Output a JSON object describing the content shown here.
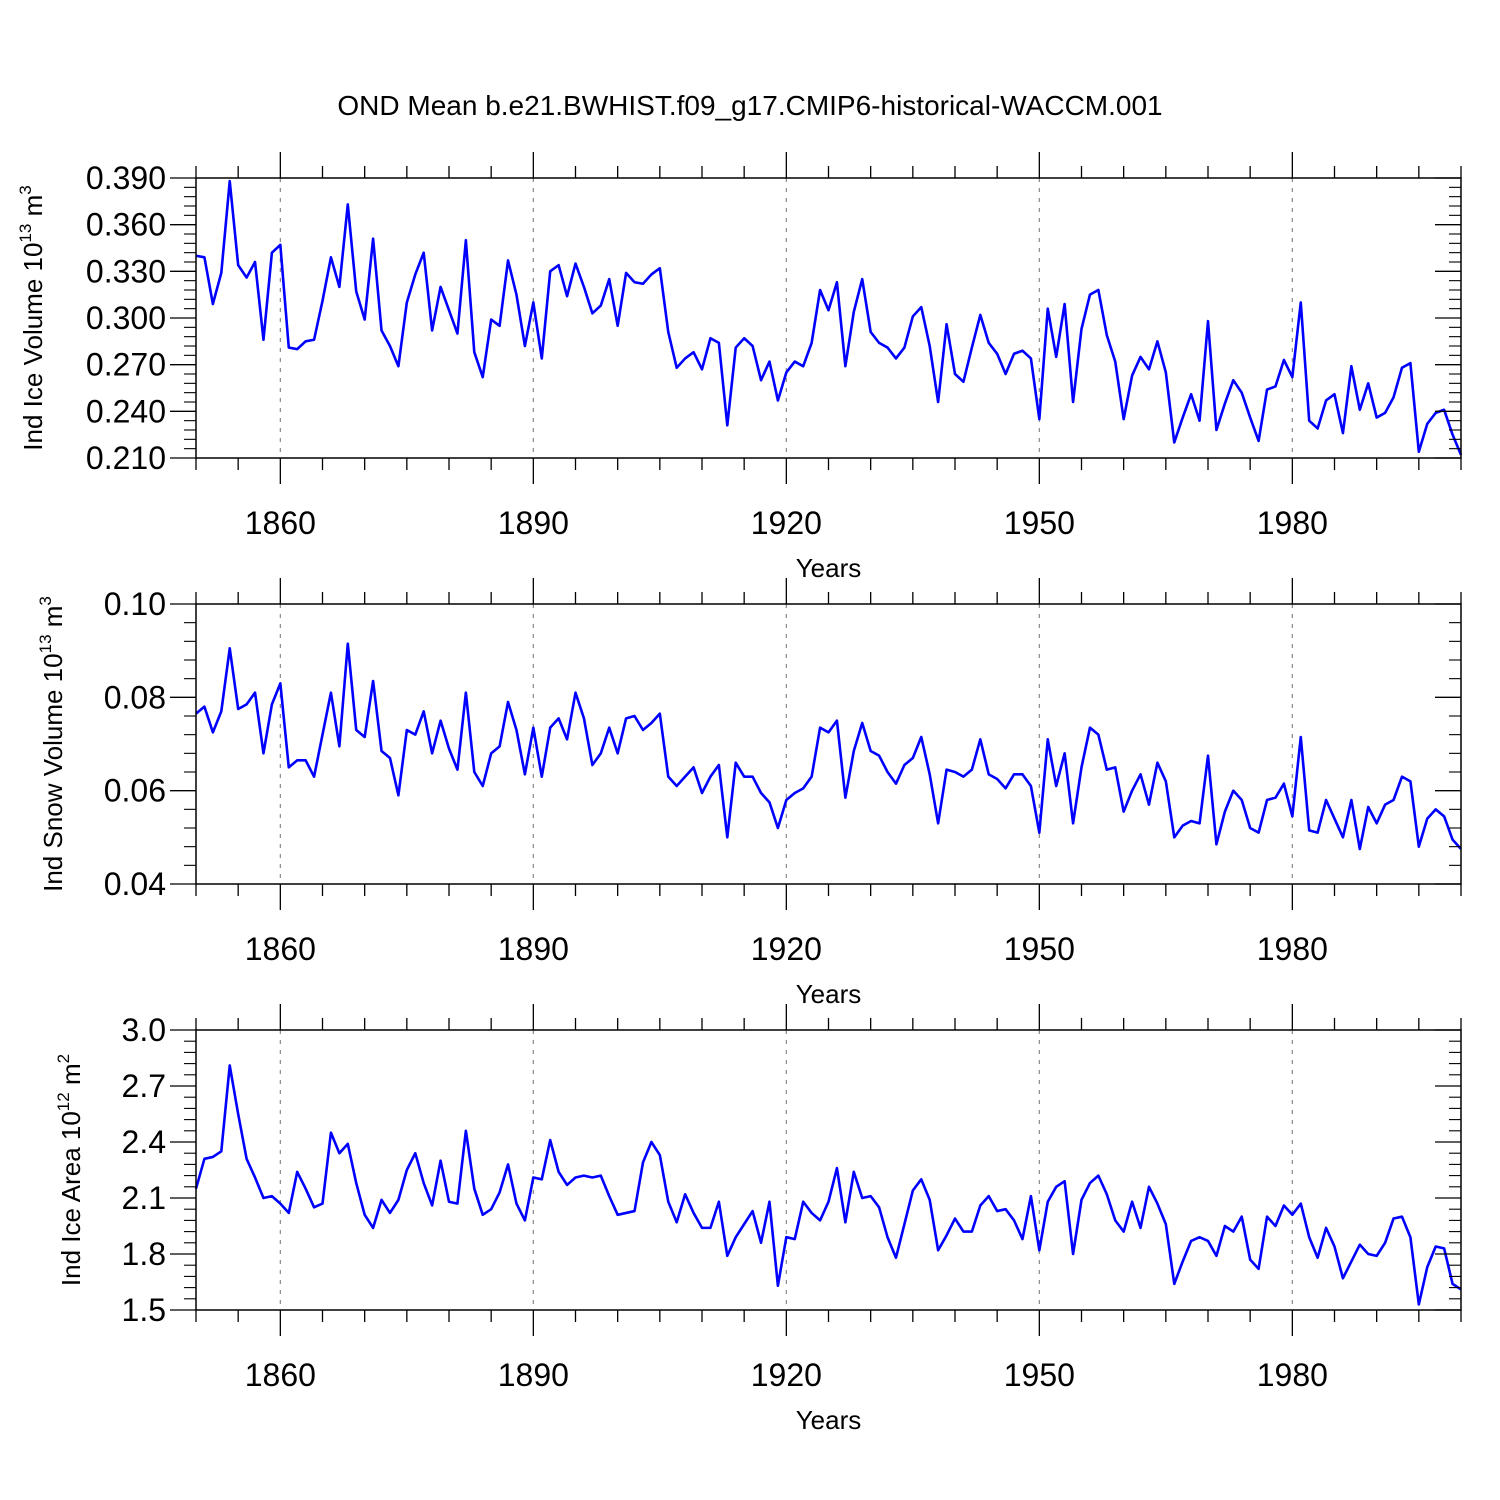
{
  "figure": {
    "title": "OND Mean b.e21.BWHIST.f09_g17.CMIP6-historical-WACCM.001",
    "line_color": "#0000ff",
    "grid_color": "#888888"
  },
  "chart_data": [
    {
      "type": "line",
      "title": "",
      "xlabel": "Years",
      "ylabel_text": "Ind Ice Volume 10",
      "ylabel_exp1": "13",
      "ylabel_unit": " m",
      "ylabel_exp2": "3",
      "xlim": [
        1850,
        2000
      ],
      "ylim": [
        0.21,
        0.39
      ],
      "yticks": [
        0.21,
        0.24,
        0.27,
        0.3,
        0.33,
        0.36,
        0.39
      ],
      "ytick_labels": [
        "0.210",
        "0.240",
        "0.270",
        "0.300",
        "0.330",
        "0.360",
        "0.390"
      ],
      "xticks": [
        1860,
        1890,
        1920,
        1950,
        1980
      ],
      "xtick_labels": [
        "1860",
        "1890",
        "1920",
        "1950",
        "1980"
      ],
      "grid": "vertical dashed at major x ticks",
      "series": [
        {
          "name": "Ind Ice Volume",
          "x_start": 1850,
          "values": [
            0.34,
            0.339,
            0.309,
            0.329,
            0.388,
            0.334,
            0.326,
            0.336,
            0.286,
            0.342,
            0.347,
            0.281,
            0.28,
            0.285,
            0.286,
            0.311,
            0.339,
            0.32,
            0.373,
            0.317,
            0.299,
            0.351,
            0.292,
            0.282,
            0.269,
            0.31,
            0.328,
            0.342,
            0.292,
            0.32,
            0.305,
            0.29,
            0.35,
            0.278,
            0.262,
            0.299,
            0.295,
            0.337,
            0.315,
            0.282,
            0.31,
            0.274,
            0.33,
            0.334,
            0.314,
            0.335,
            0.32,
            0.303,
            0.308,
            0.325,
            0.295,
            0.329,
            0.323,
            0.322,
            0.328,
            0.332,
            0.291,
            0.268,
            0.274,
            0.278,
            0.267,
            0.287,
            0.284,
            0.231,
            0.281,
            0.287,
            0.282,
            0.26,
            0.272,
            0.247,
            0.265,
            0.272,
            0.269,
            0.284,
            0.318,
            0.305,
            0.323,
            0.269,
            0.304,
            0.325,
            0.291,
            0.284,
            0.281,
            0.274,
            0.281,
            0.301,
            0.307,
            0.282,
            0.246,
            0.296,
            0.264,
            0.259,
            0.281,
            0.302,
            0.284,
            0.277,
            0.264,
            0.277,
            0.279,
            0.274,
            0.235,
            0.306,
            0.275,
            0.309,
            0.246,
            0.293,
            0.315,
            0.318,
            0.289,
            0.272,
            0.235,
            0.263,
            0.275,
            0.267,
            0.285,
            0.265,
            0.22,
            0.236,
            0.251,
            0.234,
            0.298,
            0.228,
            0.245,
            0.26,
            0.252,
            0.236,
            0.221,
            0.254,
            0.256,
            0.273,
            0.262,
            0.31,
            0.234,
            0.229,
            0.247,
            0.251,
            0.226,
            0.269,
            0.241,
            0.258,
            0.236,
            0.239,
            0.249,
            0.268,
            0.271,
            0.214,
            0.232,
            0.239,
            0.241,
            0.225,
            0.212
          ]
        }
      ]
    },
    {
      "type": "line",
      "title": "",
      "xlabel": "Years",
      "ylabel_text": "Ind Snow Volume 10",
      "ylabel_exp1": "13",
      "ylabel_unit": " m",
      "ylabel_exp2": "3",
      "xlim": [
        1850,
        2000
      ],
      "ylim": [
        0.04,
        0.1
      ],
      "yticks": [
        0.04,
        0.06,
        0.08,
        0.1
      ],
      "ytick_labels": [
        "0.04",
        "0.06",
        "0.08",
        "0.10"
      ],
      "xticks": [
        1860,
        1890,
        1920,
        1950,
        1980
      ],
      "xtick_labels": [
        "1860",
        "1890",
        "1920",
        "1950",
        "1980"
      ],
      "grid": "vertical dashed at major x ticks",
      "series": [
        {
          "name": "Ind Snow Volume",
          "x_start": 1850,
          "values": [
            0.0765,
            0.078,
            0.0725,
            0.077,
            0.0905,
            0.0775,
            0.0785,
            0.081,
            0.068,
            0.0785,
            0.083,
            0.065,
            0.0665,
            0.0665,
            0.063,
            0.072,
            0.081,
            0.0695,
            0.0915,
            0.073,
            0.0715,
            0.0835,
            0.0685,
            0.067,
            0.059,
            0.073,
            0.072,
            0.077,
            0.068,
            0.075,
            0.069,
            0.0645,
            0.081,
            0.064,
            0.061,
            0.068,
            0.0695,
            0.079,
            0.073,
            0.0635,
            0.0735,
            0.063,
            0.0735,
            0.0755,
            0.071,
            0.081,
            0.0755,
            0.0655,
            0.068,
            0.0735,
            0.068,
            0.0755,
            0.076,
            0.073,
            0.0745,
            0.0765,
            0.063,
            0.061,
            0.063,
            0.065,
            0.0595,
            0.063,
            0.0655,
            0.05,
            0.066,
            0.063,
            0.063,
            0.0595,
            0.0575,
            0.052,
            0.058,
            0.0595,
            0.0605,
            0.063,
            0.0735,
            0.0725,
            0.075,
            0.0585,
            0.0685,
            0.0745,
            0.0685,
            0.0675,
            0.064,
            0.0615,
            0.0655,
            0.067,
            0.0715,
            0.0635,
            0.053,
            0.0645,
            0.064,
            0.063,
            0.0645,
            0.071,
            0.0635,
            0.0625,
            0.0605,
            0.0635,
            0.0635,
            0.061,
            0.051,
            0.071,
            0.061,
            0.068,
            0.053,
            0.065,
            0.0735,
            0.072,
            0.0645,
            0.065,
            0.0555,
            0.06,
            0.0635,
            0.057,
            0.066,
            0.062,
            0.05,
            0.0525,
            0.0535,
            0.053,
            0.0675,
            0.0485,
            0.0555,
            0.06,
            0.058,
            0.052,
            0.051,
            0.058,
            0.0585,
            0.0615,
            0.0545,
            0.0715,
            0.0515,
            0.051,
            0.058,
            0.054,
            0.05,
            0.058,
            0.0475,
            0.0565,
            0.053,
            0.057,
            0.058,
            0.063,
            0.062,
            0.048,
            0.054,
            0.056,
            0.0545,
            0.0495,
            0.0475
          ]
        }
      ]
    },
    {
      "type": "line",
      "title": "",
      "xlabel": "Years",
      "ylabel_text": "Ind Ice Area 10",
      "ylabel_exp1": "12",
      "ylabel_unit": " m",
      "ylabel_exp2": "2",
      "xlim": [
        1850,
        2000
      ],
      "ylim": [
        1.5,
        3.0
      ],
      "yticks": [
        1.5,
        1.8,
        2.1,
        2.4,
        2.7,
        3.0
      ],
      "ytick_labels": [
        "1.5",
        "1.8",
        "2.1",
        "2.4",
        "2.7",
        "3.0"
      ],
      "xticks": [
        1860,
        1890,
        1920,
        1950,
        1980
      ],
      "xtick_labels": [
        "1860",
        "1890",
        "1920",
        "1950",
        "1980"
      ],
      "grid": "vertical dashed at major x ticks",
      "series": [
        {
          "name": "Ind Ice Area",
          "x_start": 1850,
          "values": [
            2.15,
            2.31,
            2.32,
            2.35,
            2.81,
            2.55,
            2.31,
            2.21,
            2.1,
            2.11,
            2.07,
            2.02,
            2.24,
            2.15,
            2.05,
            2.07,
            2.45,
            2.34,
            2.39,
            2.18,
            2.01,
            1.94,
            2.09,
            2.02,
            2.09,
            2.25,
            2.34,
            2.18,
            2.06,
            2.3,
            2.08,
            2.07,
            2.46,
            2.15,
            2.01,
            2.04,
            2.13,
            2.28,
            2.07,
            1.98,
            2.21,
            2.2,
            2.41,
            2.24,
            2.17,
            2.21,
            2.22,
            2.21,
            2.22,
            2.11,
            2.01,
            2.02,
            2.03,
            2.29,
            2.4,
            2.33,
            2.08,
            1.97,
            2.12,
            2.02,
            1.94,
            1.94,
            2.08,
            1.79,
            1.89,
            1.96,
            2.03,
            1.86,
            2.08,
            1.63,
            1.89,
            1.88,
            2.08,
            2.02,
            1.98,
            2.08,
            2.26,
            1.97,
            2.24,
            2.1,
            2.11,
            2.05,
            1.89,
            1.78,
            1.96,
            2.14,
            2.2,
            2.09,
            1.82,
            1.9,
            1.99,
            1.92,
            1.92,
            2.06,
            2.11,
            2.03,
            2.04,
            1.98,
            1.88,
            2.11,
            1.82,
            2.08,
            2.16,
            2.19,
            1.8,
            2.09,
            2.18,
            2.22,
            2.12,
            1.98,
            1.92,
            2.08,
            1.94,
            2.16,
            2.07,
            1.96,
            1.64,
            1.76,
            1.87,
            1.89,
            1.87,
            1.79,
            1.95,
            1.92,
            2.0,
            1.77,
            1.72,
            2.0,
            1.95,
            2.06,
            2.01,
            2.07,
            1.89,
            1.78,
            1.94,
            1.84,
            1.67,
            1.76,
            1.85,
            1.8,
            1.79,
            1.86,
            1.99,
            2.0,
            1.89,
            1.53,
            1.73,
            1.84,
            1.83,
            1.64,
            1.61
          ]
        }
      ]
    }
  ]
}
